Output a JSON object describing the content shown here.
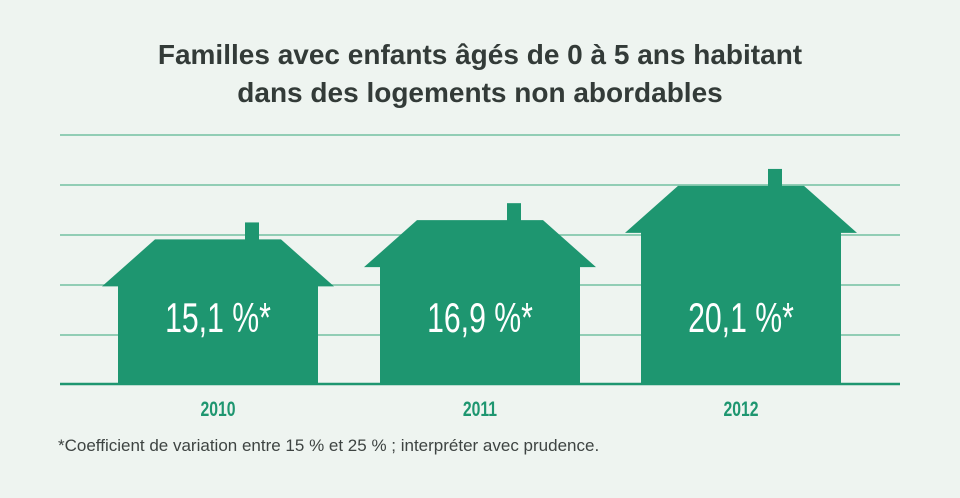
{
  "chart_data": {
    "type": "bar",
    "title": "Familles avec enfants âgés de 0 à 5 ans habitant dans des logements non abordables",
    "title_lines": [
      "Familles avec enfants âgés de 0 à 5 ans habitant",
      "dans des logements non abordables"
    ],
    "categories": [
      "2010",
      "2011",
      "2012"
    ],
    "values": [
      15.1,
      16.9,
      20.1
    ],
    "data_labels": [
      "15,1 %*",
      "16,9 %*",
      "20,1 %*"
    ],
    "mark_shape": "house",
    "grid": true,
    "colors": {
      "bar": "#1e9670",
      "grid": "#72c0a1",
      "label": "#ffffff",
      "year": "#1e9670",
      "background": "#eef4f0"
    }
  },
  "footnote": "*Coefficient de variation entre 15 % et 25 % ; interpréter avec prudence."
}
